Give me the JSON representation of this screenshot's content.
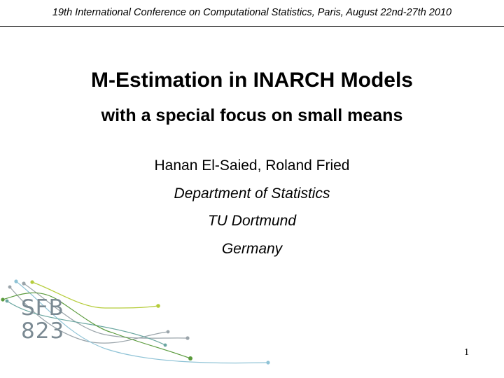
{
  "header": {
    "conference": "19th International Conference on Computational Statistics, Paris, August 22nd-27th 2010"
  },
  "title": {
    "main": "M-Estimation in INARCH Models",
    "subtitle": "with a special focus on small means"
  },
  "authors": {
    "names": "Hanan El-Saied, Roland Fried",
    "department": "Department of Statistics",
    "university": "TU Dortmund",
    "country": "Germany"
  },
  "logo": {
    "line1": "SFB",
    "line2": "823",
    "colors": {
      "text": "#7b8a93",
      "gray": "#9aa4aa",
      "lightblue": "#8fc3d6",
      "teal": "#6aa6a0",
      "lime": "#b5cc3a",
      "green": "#5a9a3c"
    }
  },
  "footer": {
    "page_number": "1"
  }
}
